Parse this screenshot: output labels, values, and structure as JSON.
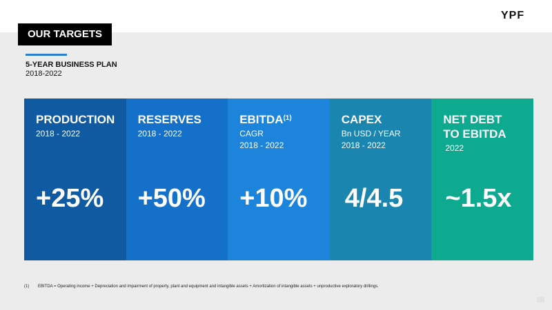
{
  "logo": "YPF",
  "header": {
    "title": "OUR TARGETS",
    "plan_title": "5-YEAR BUSINESS PLAN",
    "plan_years": "2018-2022"
  },
  "cards": [
    {
      "label": "PRODUCTION",
      "sub": [
        "2018 - 2022"
      ],
      "value": "+25%",
      "color": "#0f5aa0"
    },
    {
      "label": "RESERVES",
      "sub": [
        "2018 - 2022"
      ],
      "value": "+50%",
      "color": "#1470c8"
    },
    {
      "label": "EBITDA",
      "sup": "(1)",
      "sub": [
        "CAGR",
        "2018 - 2022"
      ],
      "value": "+10%",
      "color": "#1d84dc"
    },
    {
      "label": "CAPEX",
      "sub": [
        "Bn USD / YEAR",
        "2018 - 2022"
      ],
      "value": "4/4.5",
      "color": "#1a86b0"
    },
    {
      "label_lines": [
        "NET DEBT",
        "TO EBITDA"
      ],
      "sub": [
        "2022"
      ],
      "value": "~1.5x",
      "color": "#0eaa90"
    }
  ],
  "footnote": {
    "marker": "(1)",
    "text": "EBITDA = Operating income + Depreciation and impairment of property, plant and equipment and intangible assets + Amortization of intangible assets + unproductive exploratory drillings."
  }
}
